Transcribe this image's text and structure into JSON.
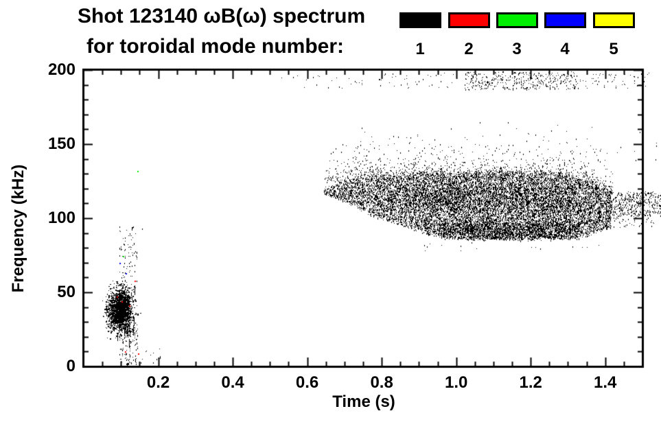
{
  "header": {
    "title": "Shot 123140 ωB(ω) spectrum",
    "subtitle": "for toroidal mode number:"
  },
  "legend": {
    "entries": [
      {
        "label": "1",
        "color": "#000000"
      },
      {
        "label": "2",
        "color": "#ff0000"
      },
      {
        "label": "3",
        "color": "#00ee00"
      },
      {
        "label": "4",
        "color": "#0000ff"
      },
      {
        "label": "5",
        "color": "#ffff00"
      }
    ]
  },
  "chart_data": {
    "type": "scatter",
    "title": "Shot 123140 ωB(ω) spectrum",
    "subtitle": "for toroidal mode number:",
    "xlabel": "Time (s)",
    "ylabel": "Frequency (kHz)",
    "xlim": [
      0,
      1.5
    ],
    "ylim": [
      0,
      200
    ],
    "grid": false,
    "legend_position": "top-right",
    "x_major_ticks": [
      0.2,
      0.4,
      0.6,
      0.8,
      1.0,
      1.2,
      1.4
    ],
    "x_tick_labels": [
      "0.2",
      "0.4",
      "0.6",
      "0.8",
      "1.0",
      "1.2",
      "1.4"
    ],
    "x_minor_step": 0.05,
    "y_major_ticks": [
      0,
      50,
      100,
      150,
      200
    ],
    "y_tick_labels": [
      "0",
      "50",
      "100",
      "150",
      "200"
    ],
    "y_minor_step": 10,
    "point_color": "#000000",
    "band_profile": [
      [
        0.645,
        119,
        116
      ],
      [
        0.7,
        125,
        112
      ],
      [
        0.74,
        128,
        106
      ],
      [
        0.78,
        129,
        102
      ],
      [
        0.85,
        130,
        96
      ],
      [
        0.92,
        131,
        90
      ],
      [
        1.0,
        131,
        87
      ],
      [
        1.1,
        132,
        86
      ],
      [
        1.2,
        131,
        86
      ],
      [
        1.28,
        130,
        87
      ],
      [
        1.35,
        127,
        89
      ],
      [
        1.415,
        119,
        94
      ]
    ],
    "clusters": [
      {
        "name": "startup-mode-core",
        "type": "gaussian",
        "t_mean": 0.096,
        "t_sigma": 0.016,
        "f_mean": 38,
        "f_sigma": 7,
        "count": 1700,
        "max_h": 3,
        "wide": true
      },
      {
        "name": "startup-mode-streaks",
        "type": "streaks",
        "t_range": [
          0.08,
          0.138
        ],
        "f_range": [
          18,
          55
        ],
        "count": 26,
        "len_range": [
          4,
          16
        ]
      },
      {
        "name": "startup-halo-upper",
        "type": "uniform",
        "t_range": [
          0.095,
          0.142
        ],
        "f_range": [
          50,
          95
        ],
        "count": 90,
        "max_h": 3
      },
      {
        "name": "startup-halo-lower",
        "type": "uniform",
        "t_range": [
          0.095,
          0.145
        ],
        "f_range": [
          1,
          28
        ],
        "count": 130,
        "max_h": 4
      },
      {
        "name": "main-band",
        "type": "band",
        "count": 16000,
        "max_h": 3
      },
      {
        "name": "main-band-bottom-ridge",
        "type": "uniform",
        "t_range": [
          0.95,
          1.33
        ],
        "f_range": [
          86,
          97
        ],
        "count": 1400,
        "max_h": 3
      },
      {
        "name": "main-band-mid-ridge",
        "type": "uniform",
        "t_range": [
          0.86,
          1.32
        ],
        "f_range": [
          108,
          121
        ],
        "count": 1100,
        "max_h": 3
      },
      {
        "name": "main-band-halo",
        "type": "band-halo",
        "t_range": [
          0.645,
          1.42
        ],
        "decay": 8,
        "max_rise": 34,
        "count": 800,
        "max_h": 2
      },
      {
        "name": "band-underside-strays",
        "type": "uniform",
        "t_range": [
          0.9,
          1.4
        ],
        "f_range": [
          77,
          85
        ],
        "count": 16,
        "max_h": 2
      },
      {
        "name": "upper-right-scatter",
        "type": "uniform",
        "t_range": [
          1.3,
          1.55
        ],
        "f_range": [
          138,
          163
        ],
        "count": 16,
        "max_h": 2
      },
      {
        "name": "top-band-left",
        "type": "uniform",
        "t_range": [
          0.52,
          1.02
        ],
        "f_range": [
          188,
          198
        ],
        "count": 60,
        "max_h": 2
      },
      {
        "name": "top-band-mid",
        "type": "uniform",
        "t_range": [
          1.02,
          1.32
        ],
        "f_range": [
          187,
          199
        ],
        "count": 380,
        "max_h": 2
      },
      {
        "name": "top-band-right",
        "type": "uniform",
        "t_range": [
          1.32,
          1.52
        ],
        "f_range": [
          188,
          198
        ],
        "count": 60,
        "max_h": 2
      },
      {
        "name": "right-edge-patch",
        "type": "uniform",
        "t_range": [
          1.4,
          1.55
        ],
        "f_range": [
          102,
          118
        ],
        "count": 450,
        "max_h": 3
      },
      {
        "name": "right-edge-patch-lower",
        "type": "uniform",
        "t_range": [
          1.42,
          1.53
        ],
        "f_range": [
          94,
          102
        ],
        "count": 45,
        "max_h": 2
      },
      {
        "name": "early-bottom-specks",
        "type": "uniform",
        "t_range": [
          0.14,
          0.21
        ],
        "f_range": [
          0,
          12
        ],
        "count": 12,
        "max_h": 2
      }
    ],
    "colored_points": [
      {
        "mode": "3",
        "t": 0.105,
        "f": 74.5
      },
      {
        "mode": "3",
        "t": 0.143,
        "f": 132
      },
      {
        "mode": "4",
        "t": 0.096,
        "f": 70
      },
      {
        "mode": "4",
        "t": 0.112,
        "f": 63
      },
      {
        "mode": "2",
        "t": 0.137,
        "f": 58
      },
      {
        "mode": "2",
        "t": 0.089,
        "f": 47
      },
      {
        "mode": "2",
        "t": 0.101,
        "f": 44
      },
      {
        "mode": "2",
        "t": 0.122,
        "f": 41
      },
      {
        "mode": "2",
        "t": 0.111,
        "f": 10
      },
      {
        "mode": "2",
        "t": 0.146,
        "f": 9
      }
    ],
    "isolated_points": [
      {
        "t": 0.156,
        "f": 93
      },
      {
        "t": 0.186,
        "f": 3
      },
      {
        "t": 0.205,
        "f": 7
      }
    ]
  }
}
